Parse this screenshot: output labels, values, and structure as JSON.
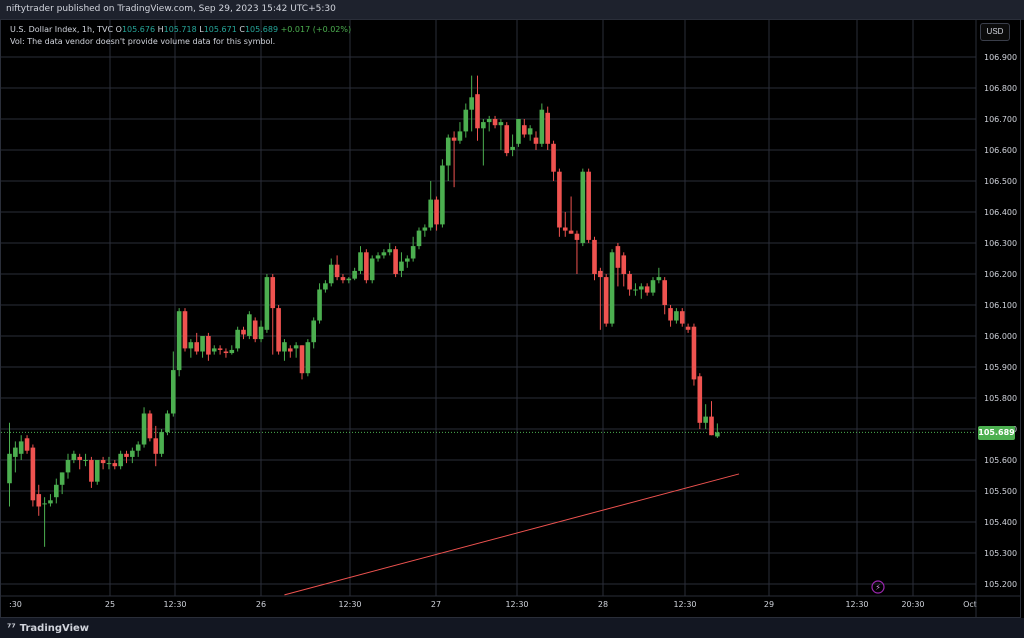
{
  "header": {
    "published_text": "niftytrader published on TradingView.com, Sep 29, 2023 15:42 UTC+5:30"
  },
  "legend": {
    "symbol": "U.S. Dollar Index, 1h, TVC",
    "o_label": "O",
    "o_value": "105.676",
    "h_label": "H",
    "h_value": "105.718",
    "l_label": "L",
    "l_value": "105.671",
    "c_label": "C",
    "c_value": "105.689",
    "change": "+0.017 (+0.02%)",
    "vol_text": "Vol: The data vendor doesn't provide volume data for this symbol."
  },
  "price_scale": {
    "currency": "USD",
    "last_price_label": "105.689"
  },
  "footer": {
    "brand": "TradingView"
  },
  "colors": {
    "up": "#4caf50",
    "down": "#ef5350",
    "background": "#000000",
    "grid": "#2a2e39",
    "trendline": "#ef5350"
  },
  "chart_data": {
    "type": "candlestick",
    "timeframe": "1h",
    "y_tick_labels": [
      "106.900",
      "106.800",
      "106.700",
      "106.600",
      "106.500",
      "106.400",
      "106.300",
      "106.200",
      "106.100",
      "106.000",
      "105.900",
      "105.800",
      "105.700",
      "105.600",
      "105.500",
      "105.400",
      "105.300",
      "105.200"
    ],
    "y_ticks": [
      106.9,
      106.8,
      106.7,
      106.6,
      106.5,
      106.4,
      106.3,
      106.2,
      106.1,
      106.0,
      105.9,
      105.8,
      105.7,
      105.6,
      105.5,
      105.4,
      105.3,
      105.2
    ],
    "ylim": [
      105.17,
      106.97
    ],
    "x_tick_labels": [
      ":30",
      "25",
      "12:30",
      "26",
      "12:30",
      "27",
      "12:30",
      "28",
      "12:30",
      "29",
      "12:30",
      "20:30",
      "Oct"
    ],
    "grid": true,
    "last_price": 105.689,
    "trendline": {
      "start_index": 47,
      "start_price": 105.165,
      "end_index": 124.7,
      "end_price": 105.555
    },
    "candles": [
      {
        "o": 105.525,
        "h": 105.72,
        "l": 105.45,
        "c": 105.62
      },
      {
        "o": 105.61,
        "h": 105.66,
        "l": 105.56,
        "c": 105.64
      },
      {
        "o": 105.62,
        "h": 105.68,
        "l": 105.6,
        "c": 105.66
      },
      {
        "o": 105.67,
        "h": 105.68,
        "l": 105.62,
        "c": 105.63
      },
      {
        "o": 105.64,
        "h": 105.65,
        "l": 105.45,
        "c": 105.47
      },
      {
        "o": 105.49,
        "h": 105.52,
        "l": 105.42,
        "c": 105.45
      },
      {
        "o": 105.46,
        "h": 105.48,
        "l": 105.32,
        "c": 105.46
      },
      {
        "o": 105.46,
        "h": 105.49,
        "l": 105.45,
        "c": 105.47
      },
      {
        "o": 105.48,
        "h": 105.54,
        "l": 105.46,
        "c": 105.52
      },
      {
        "o": 105.52,
        "h": 105.56,
        "l": 105.49,
        "c": 105.56
      },
      {
        "o": 105.56,
        "h": 105.62,
        "l": 105.54,
        "c": 105.6
      },
      {
        "o": 105.6,
        "h": 105.63,
        "l": 105.59,
        "c": 105.62
      },
      {
        "o": 105.61,
        "h": 105.62,
        "l": 105.57,
        "c": 105.6
      },
      {
        "o": 105.6,
        "h": 105.62,
        "l": 105.58,
        "c": 105.6
      },
      {
        "o": 105.6,
        "h": 105.61,
        "l": 105.51,
        "c": 105.53
      },
      {
        "o": 105.53,
        "h": 105.6,
        "l": 105.52,
        "c": 105.6
      },
      {
        "o": 105.6,
        "h": 105.61,
        "l": 105.57,
        "c": 105.59
      },
      {
        "o": 105.59,
        "h": 105.61,
        "l": 105.57,
        "c": 105.59
      },
      {
        "o": 105.59,
        "h": 105.6,
        "l": 105.57,
        "c": 105.58
      },
      {
        "o": 105.58,
        "h": 105.63,
        "l": 105.57,
        "c": 105.62
      },
      {
        "o": 105.62,
        "h": 105.63,
        "l": 105.59,
        "c": 105.61
      },
      {
        "o": 105.61,
        "h": 105.64,
        "l": 105.59,
        "c": 105.63
      },
      {
        "o": 105.63,
        "h": 105.66,
        "l": 105.61,
        "c": 105.65
      },
      {
        "o": 105.65,
        "h": 105.77,
        "l": 105.64,
        "c": 105.75
      },
      {
        "o": 105.75,
        "h": 105.76,
        "l": 105.66,
        "c": 105.67
      },
      {
        "o": 105.67,
        "h": 105.71,
        "l": 105.58,
        "c": 105.62
      },
      {
        "o": 105.62,
        "h": 105.7,
        "l": 105.61,
        "c": 105.69
      },
      {
        "o": 105.69,
        "h": 105.76,
        "l": 105.68,
        "c": 105.75
      },
      {
        "o": 105.75,
        "h": 105.95,
        "l": 105.74,
        "c": 105.89
      },
      {
        "o": 105.89,
        "h": 106.09,
        "l": 105.87,
        "c": 106.08
      },
      {
        "o": 106.08,
        "h": 106.09,
        "l": 105.95,
        "c": 105.96
      },
      {
        "o": 105.96,
        "h": 105.99,
        "l": 105.93,
        "c": 105.98
      },
      {
        "o": 105.98,
        "h": 106.01,
        "l": 105.94,
        "c": 105.95
      },
      {
        "o": 105.95,
        "h": 106.0,
        "l": 105.93,
        "c": 106.0
      },
      {
        "o": 106.0,
        "h": 106.01,
        "l": 105.92,
        "c": 105.94
      },
      {
        "o": 105.95,
        "h": 105.97,
        "l": 105.94,
        "c": 105.96
      },
      {
        "o": 105.96,
        "h": 105.97,
        "l": 105.94,
        "c": 105.955
      },
      {
        "o": 105.95,
        "h": 105.96,
        "l": 105.93,
        "c": 105.945
      },
      {
        "o": 105.945,
        "h": 105.97,
        "l": 105.94,
        "c": 105.955
      },
      {
        "o": 105.96,
        "h": 106.03,
        "l": 105.95,
        "c": 106.02
      },
      {
        "o": 106.02,
        "h": 106.03,
        "l": 105.99,
        "c": 106.005
      },
      {
        "o": 106.0,
        "h": 106.08,
        "l": 105.99,
        "c": 106.07
      },
      {
        "o": 106.05,
        "h": 106.06,
        "l": 105.98,
        "c": 105.99
      },
      {
        "o": 105.99,
        "h": 106.05,
        "l": 105.98,
        "c": 106.03
      },
      {
        "o": 106.02,
        "h": 106.2,
        "l": 106.01,
        "c": 106.19
      },
      {
        "o": 106.19,
        "h": 106.2,
        "l": 105.94,
        "c": 106.09
      },
      {
        "o": 106.09,
        "h": 106.1,
        "l": 105.94,
        "c": 105.95
      },
      {
        "o": 105.95,
        "h": 105.99,
        "l": 105.92,
        "c": 105.98
      },
      {
        "o": 105.96,
        "h": 105.97,
        "l": 105.93,
        "c": 105.95
      },
      {
        "o": 105.96,
        "h": 105.98,
        "l": 105.93,
        "c": 105.97
      },
      {
        "o": 105.97,
        "h": 105.97,
        "l": 105.86,
        "c": 105.88
      },
      {
        "o": 105.88,
        "h": 105.99,
        "l": 105.87,
        "c": 105.98
      },
      {
        "o": 105.98,
        "h": 106.06,
        "l": 105.96,
        "c": 106.05
      },
      {
        "o": 106.05,
        "h": 106.17,
        "l": 106.04,
        "c": 106.15
      },
      {
        "o": 106.15,
        "h": 106.18,
        "l": 106.14,
        "c": 106.17
      },
      {
        "o": 106.17,
        "h": 106.25,
        "l": 106.16,
        "c": 106.23
      },
      {
        "o": 106.23,
        "h": 106.26,
        "l": 106.18,
        "c": 106.19
      },
      {
        "o": 106.19,
        "h": 106.2,
        "l": 106.17,
        "c": 106.18
      },
      {
        "o": 106.18,
        "h": 106.19,
        "l": 106.17,
        "c": 106.185
      },
      {
        "o": 106.185,
        "h": 106.22,
        "l": 106.18,
        "c": 106.21
      },
      {
        "o": 106.21,
        "h": 106.29,
        "l": 106.2,
        "c": 106.27
      },
      {
        "o": 106.27,
        "h": 106.28,
        "l": 106.17,
        "c": 106.18
      },
      {
        "o": 106.18,
        "h": 106.26,
        "l": 106.17,
        "c": 106.25
      },
      {
        "o": 106.25,
        "h": 106.27,
        "l": 106.24,
        "c": 106.26
      },
      {
        "o": 106.26,
        "h": 106.28,
        "l": 106.25,
        "c": 106.27
      },
      {
        "o": 106.27,
        "h": 106.3,
        "l": 106.26,
        "c": 106.28
      },
      {
        "o": 106.28,
        "h": 106.29,
        "l": 106.19,
        "c": 106.2
      },
      {
        "o": 106.21,
        "h": 106.27,
        "l": 106.19,
        "c": 106.24
      },
      {
        "o": 106.24,
        "h": 106.26,
        "l": 106.22,
        "c": 106.25
      },
      {
        "o": 106.25,
        "h": 106.32,
        "l": 106.24,
        "c": 106.29
      },
      {
        "o": 106.29,
        "h": 106.35,
        "l": 106.28,
        "c": 106.34
      },
      {
        "o": 106.34,
        "h": 106.36,
        "l": 106.32,
        "c": 106.35
      },
      {
        "o": 106.35,
        "h": 106.5,
        "l": 106.34,
        "c": 106.44
      },
      {
        "o": 106.44,
        "h": 106.45,
        "l": 106.34,
        "c": 106.36
      },
      {
        "o": 106.36,
        "h": 106.57,
        "l": 106.35,
        "c": 106.55
      },
      {
        "o": 106.55,
        "h": 106.65,
        "l": 106.5,
        "c": 106.64
      },
      {
        "o": 106.64,
        "h": 106.66,
        "l": 106.48,
        "c": 106.63
      },
      {
        "o": 106.63,
        "h": 106.69,
        "l": 106.62,
        "c": 106.66
      },
      {
        "o": 106.66,
        "h": 106.75,
        "l": 106.64,
        "c": 106.73
      },
      {
        "o": 106.73,
        "h": 106.84,
        "l": 106.66,
        "c": 106.77
      },
      {
        "o": 106.78,
        "h": 106.84,
        "l": 106.63,
        "c": 106.67
      },
      {
        "o": 106.67,
        "h": 106.7,
        "l": 106.55,
        "c": 106.69
      },
      {
        "o": 106.69,
        "h": 106.71,
        "l": 106.66,
        "c": 106.7
      },
      {
        "o": 106.7,
        "h": 106.71,
        "l": 106.67,
        "c": 106.68
      },
      {
        "o": 106.68,
        "h": 106.7,
        "l": 106.6,
        "c": 106.69
      },
      {
        "o": 106.68,
        "h": 106.69,
        "l": 106.58,
        "c": 106.59
      },
      {
        "o": 106.6,
        "h": 106.65,
        "l": 106.58,
        "c": 106.61
      },
      {
        "o": 106.62,
        "h": 106.7,
        "l": 106.61,
        "c": 106.7
      },
      {
        "o": 106.68,
        "h": 106.7,
        "l": 106.64,
        "c": 106.65
      },
      {
        "o": 106.65,
        "h": 106.68,
        "l": 106.63,
        "c": 106.67
      },
      {
        "o": 106.64,
        "h": 106.66,
        "l": 106.6,
        "c": 106.62
      },
      {
        "o": 106.62,
        "h": 106.75,
        "l": 106.61,
        "c": 106.73
      },
      {
        "o": 106.72,
        "h": 106.74,
        "l": 106.6,
        "c": 106.62
      },
      {
        "o": 106.62,
        "h": 106.63,
        "l": 106.5,
        "c": 106.53
      },
      {
        "o": 106.53,
        "h": 106.54,
        "l": 106.32,
        "c": 106.35
      },
      {
        "o": 106.35,
        "h": 106.4,
        "l": 106.32,
        "c": 106.34
      },
      {
        "o": 106.34,
        "h": 106.45,
        "l": 106.33,
        "c": 106.33
      },
      {
        "o": 106.33,
        "h": 106.34,
        "l": 106.2,
        "c": 106.31
      },
      {
        "o": 106.3,
        "h": 106.54,
        "l": 106.29,
        "c": 106.53
      },
      {
        "o": 106.53,
        "h": 106.54,
        "l": 106.3,
        "c": 106.31
      },
      {
        "o": 106.31,
        "h": 106.32,
        "l": 106.18,
        "c": 106.2
      },
      {
        "o": 106.21,
        "h": 106.22,
        "l": 106.02,
        "c": 106.19
      },
      {
        "o": 106.19,
        "h": 106.2,
        "l": 106.03,
        "c": 106.04
      },
      {
        "o": 106.04,
        "h": 106.28,
        "l": 106.03,
        "c": 106.27
      },
      {
        "o": 106.29,
        "h": 106.3,
        "l": 106.16,
        "c": 106.22
      },
      {
        "o": 106.26,
        "h": 106.27,
        "l": 106.16,
        "c": 106.2
      },
      {
        "o": 106.2,
        "h": 106.21,
        "l": 106.13,
        "c": 106.15
      },
      {
        "o": 106.15,
        "h": 106.17,
        "l": 106.13,
        "c": 106.15
      },
      {
        "o": 106.15,
        "h": 106.17,
        "l": 106.12,
        "c": 106.16
      },
      {
        "o": 106.16,
        "h": 106.17,
        "l": 106.13,
        "c": 106.14
      },
      {
        "o": 106.14,
        "h": 106.19,
        "l": 106.13,
        "c": 106.18
      },
      {
        "o": 106.18,
        "h": 106.22,
        "l": 106.17,
        "c": 106.19
      },
      {
        "o": 106.18,
        "h": 106.19,
        "l": 106.07,
        "c": 106.1
      },
      {
        "o": 106.09,
        "h": 106.1,
        "l": 106.03,
        "c": 106.05
      },
      {
        "o": 106.05,
        "h": 106.09,
        "l": 106.04,
        "c": 106.08
      },
      {
        "o": 106.08,
        "h": 106.09,
        "l": 106.03,
        "c": 106.04
      },
      {
        "o": 106.03,
        "h": 106.04,
        "l": 106.01,
        "c": 106.02
      },
      {
        "o": 106.03,
        "h": 106.04,
        "l": 105.84,
        "c": 105.86
      },
      {
        "o": 105.87,
        "h": 105.88,
        "l": 105.7,
        "c": 105.72
      },
      {
        "o": 105.72,
        "h": 105.78,
        "l": 105.7,
        "c": 105.74
      },
      {
        "o": 105.74,
        "h": 105.79,
        "l": 105.68,
        "c": 105.68
      },
      {
        "o": 105.676,
        "h": 105.718,
        "l": 105.671,
        "c": 105.689
      }
    ]
  }
}
